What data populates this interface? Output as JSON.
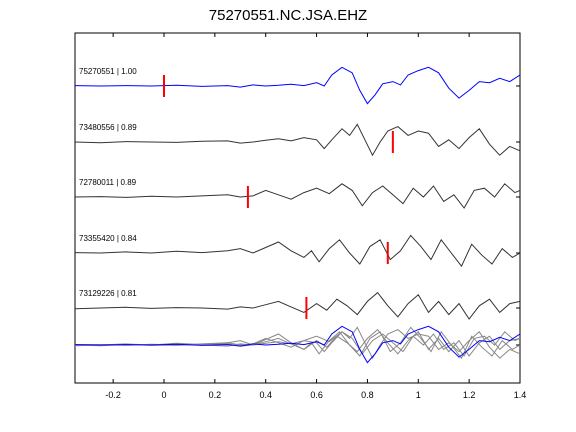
{
  "title": "75270551.NC.JSA.EHZ",
  "chart_data": {
    "type": "line",
    "title": "75270551.NC.JSA.EHZ",
    "xlabel": "",
    "ylabel": "",
    "xlim": [
      -0.35,
      1.4
    ],
    "x_ticks": [
      -0.2,
      0,
      0.2,
      0.4,
      0.6,
      0.8,
      1,
      1.2,
      1.4
    ],
    "x_tick_labels": [
      "-0.2",
      "0",
      "0.2",
      "0.4",
      "0.6",
      "0.8",
      "1",
      "1.2",
      "1.4"
    ],
    "grid": false,
    "colors": {
      "reference": "#0000ff",
      "trace": "#333333",
      "pick": "#ff0000",
      "stack": "#888888"
    },
    "series": [
      {
        "name": "75270551 | 1.00",
        "color": "#0000ff",
        "pick": 0.0,
        "points": [
          [
            -0.35,
            0.02
          ],
          [
            -0.25,
            0.0
          ],
          [
            -0.15,
            0.02
          ],
          [
            -0.05,
            0.0
          ],
          [
            0.05,
            0.03
          ],
          [
            0.15,
            -0.02
          ],
          [
            0.25,
            0.02
          ],
          [
            0.3,
            -0.05
          ],
          [
            0.35,
            0.05
          ],
          [
            0.4,
            0.0
          ],
          [
            0.45,
            0.03
          ],
          [
            0.5,
            0.08
          ],
          [
            0.55,
            0.02
          ],
          [
            0.6,
            0.15
          ],
          [
            0.63,
            0.0
          ],
          [
            0.66,
            0.5
          ],
          [
            0.7,
            0.85
          ],
          [
            0.74,
            0.6
          ],
          [
            0.77,
            -0.2
          ],
          [
            0.8,
            -0.8
          ],
          [
            0.83,
            -0.4
          ],
          [
            0.86,
            0.1
          ],
          [
            0.9,
            0.2
          ],
          [
            0.93,
            0.05
          ],
          [
            0.96,
            0.5
          ],
          [
            1.0,
            0.7
          ],
          [
            1.04,
            0.85
          ],
          [
            1.08,
            0.6
          ],
          [
            1.12,
            -0.1
          ],
          [
            1.16,
            -0.55
          ],
          [
            1.2,
            -0.2
          ],
          [
            1.24,
            0.2
          ],
          [
            1.28,
            0.15
          ],
          [
            1.32,
            0.35
          ],
          [
            1.36,
            0.2
          ],
          [
            1.4,
            0.5
          ]
        ]
      },
      {
        "name": "73480556 | 0.89",
        "color": "#333333",
        "pick": 0.9,
        "points": [
          [
            -0.35,
            0.0
          ],
          [
            -0.25,
            -0.03
          ],
          [
            -0.15,
            0.02
          ],
          [
            -0.05,
            0.0
          ],
          [
            0.05,
            -0.02
          ],
          [
            0.15,
            0.03
          ],
          [
            0.25,
            0.05
          ],
          [
            0.3,
            -0.05
          ],
          [
            0.35,
            0.0
          ],
          [
            0.4,
            0.08
          ],
          [
            0.45,
            0.15
          ],
          [
            0.5,
            0.05
          ],
          [
            0.55,
            0.2
          ],
          [
            0.6,
            0.1
          ],
          [
            0.63,
            -0.3
          ],
          [
            0.66,
            0.1
          ],
          [
            0.7,
            0.6
          ],
          [
            0.73,
            0.3
          ],
          [
            0.76,
            0.8
          ],
          [
            0.79,
            0.1
          ],
          [
            0.82,
            -0.6
          ],
          [
            0.85,
            0.0
          ],
          [
            0.88,
            0.5
          ],
          [
            0.92,
            0.7
          ],
          [
            0.96,
            0.3
          ],
          [
            1.0,
            0.5
          ],
          [
            1.04,
            0.4
          ],
          [
            1.08,
            -0.2
          ],
          [
            1.12,
            0.1
          ],
          [
            1.16,
            -0.3
          ],
          [
            1.2,
            0.2
          ],
          [
            1.24,
            0.6
          ],
          [
            1.28,
            -0.1
          ],
          [
            1.32,
            -0.6
          ],
          [
            1.36,
            -0.2
          ],
          [
            1.4,
            -0.4
          ]
        ]
      },
      {
        "name": "72780011 | 0.89",
        "color": "#333333",
        "pick": 0.33,
        "points": [
          [
            -0.35,
            0.0
          ],
          [
            -0.25,
            0.02
          ],
          [
            -0.15,
            -0.02
          ],
          [
            -0.05,
            0.03
          ],
          [
            0.05,
            0.0
          ],
          [
            0.15,
            0.05
          ],
          [
            0.25,
            0.1
          ],
          [
            0.3,
            0.0
          ],
          [
            0.35,
            0.05
          ],
          [
            0.4,
            0.3
          ],
          [
            0.45,
            0.1
          ],
          [
            0.5,
            -0.1
          ],
          [
            0.55,
            0.2
          ],
          [
            0.6,
            0.4
          ],
          [
            0.65,
            0.15
          ],
          [
            0.7,
            0.6
          ],
          [
            0.74,
            0.3
          ],
          [
            0.78,
            -0.4
          ],
          [
            0.82,
            0.2
          ],
          [
            0.86,
            0.5
          ],
          [
            0.9,
            0.1
          ],
          [
            0.94,
            -0.3
          ],
          [
            0.98,
            0.4
          ],
          [
            1.02,
            0.0
          ],
          [
            1.06,
            0.5
          ],
          [
            1.1,
            -0.2
          ],
          [
            1.14,
            0.1
          ],
          [
            1.18,
            -0.5
          ],
          [
            1.22,
            0.3
          ],
          [
            1.26,
            0.4
          ],
          [
            1.3,
            0.0
          ],
          [
            1.34,
            0.6
          ],
          [
            1.38,
            0.2
          ],
          [
            1.4,
            0.3
          ]
        ]
      },
      {
        "name": "73355420 | 0.84",
        "color": "#333333",
        "pick": 0.88,
        "points": [
          [
            -0.35,
            0.02
          ],
          [
            -0.25,
            0.0
          ],
          [
            -0.15,
            0.05
          ],
          [
            -0.05,
            0.0
          ],
          [
            0.05,
            0.08
          ],
          [
            0.15,
            0.02
          ],
          [
            0.25,
            0.1
          ],
          [
            0.3,
            0.2
          ],
          [
            0.35,
            0.0
          ],
          [
            0.4,
            0.25
          ],
          [
            0.45,
            0.5
          ],
          [
            0.5,
            0.1
          ],
          [
            0.55,
            -0.2
          ],
          [
            0.58,
            0.1
          ],
          [
            0.61,
            -0.4
          ],
          [
            0.65,
            0.2
          ],
          [
            0.69,
            0.6
          ],
          [
            0.73,
            0.0
          ],
          [
            0.77,
            -0.5
          ],
          [
            0.81,
            0.3
          ],
          [
            0.85,
            0.6
          ],
          [
            0.89,
            -0.3
          ],
          [
            0.93,
            0.1
          ],
          [
            0.97,
            0.8
          ],
          [
            1.01,
            0.3
          ],
          [
            1.05,
            -0.3
          ],
          [
            1.09,
            0.6
          ],
          [
            1.13,
            0.0
          ],
          [
            1.17,
            -0.6
          ],
          [
            1.21,
            0.4
          ],
          [
            1.25,
            -0.1
          ],
          [
            1.29,
            -0.5
          ],
          [
            1.33,
            0.2
          ],
          [
            1.37,
            -0.2
          ],
          [
            1.4,
            0.0
          ]
        ]
      },
      {
        "name": "73129226 | 0.81",
        "color": "#333333",
        "pick": 0.56,
        "points": [
          [
            -0.35,
            -0.03
          ],
          [
            -0.25,
            0.0
          ],
          [
            -0.15,
            0.03
          ],
          [
            -0.05,
            -0.02
          ],
          [
            0.05,
            0.02
          ],
          [
            0.15,
            0.0
          ],
          [
            0.25,
            -0.05
          ],
          [
            0.3,
            0.05
          ],
          [
            0.35,
            0.0
          ],
          [
            0.4,
            0.15
          ],
          [
            0.45,
            0.3
          ],
          [
            0.5,
            0.05
          ],
          [
            0.55,
            -0.2
          ],
          [
            0.6,
            0.2
          ],
          [
            0.64,
            -0.1
          ],
          [
            0.68,
            0.4
          ],
          [
            0.72,
            0.1
          ],
          [
            0.76,
            -0.3
          ],
          [
            0.8,
            0.3
          ],
          [
            0.84,
            0.7
          ],
          [
            0.88,
            0.1
          ],
          [
            0.92,
            -0.4
          ],
          [
            0.96,
            0.2
          ],
          [
            1.0,
            0.6
          ],
          [
            1.04,
            -0.2
          ],
          [
            1.08,
            0.3
          ],
          [
            1.12,
            -0.3
          ],
          [
            1.16,
            0.2
          ],
          [
            1.2,
            -0.5
          ],
          [
            1.24,
            0.1
          ],
          [
            1.28,
            0.4
          ],
          [
            1.32,
            -0.2
          ],
          [
            1.36,
            0.2
          ],
          [
            1.4,
            0.3
          ]
        ]
      }
    ],
    "stack": {
      "reference_color": "#0000ff",
      "trace_color": "#888888"
    }
  }
}
